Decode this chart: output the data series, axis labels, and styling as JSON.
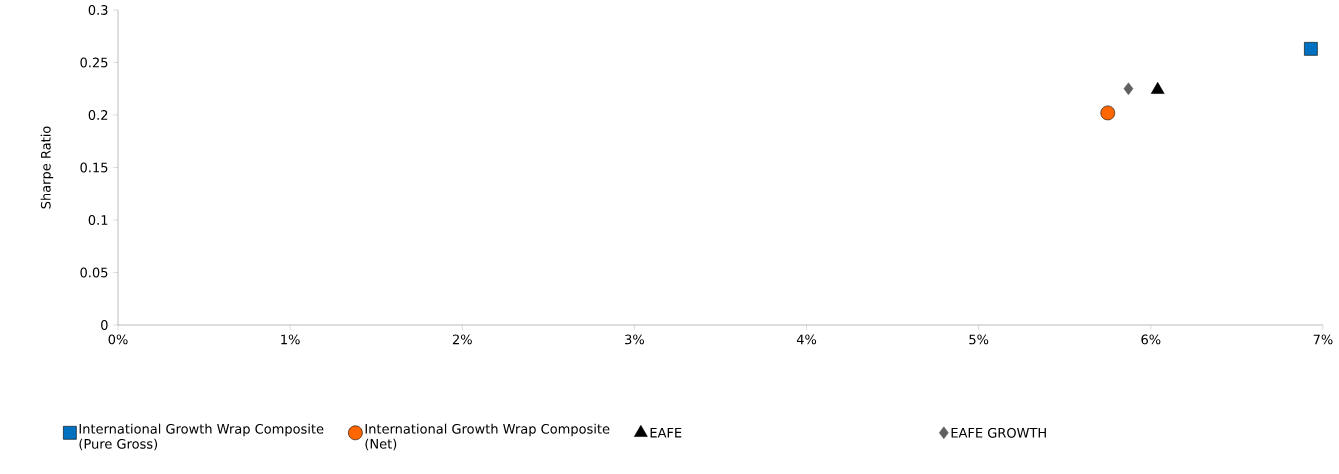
{
  "chart_data": {
    "type": "scatter",
    "ylabel": "Sharpe Ratio",
    "xlim": [
      0,
      7
    ],
    "ylim": [
      0,
      0.3
    ],
    "xticks": [
      {
        "value": 0,
        "label": "0%"
      },
      {
        "value": 1,
        "label": "1%"
      },
      {
        "value": 2,
        "label": "2%"
      },
      {
        "value": 3,
        "label": "3%"
      },
      {
        "value": 4,
        "label": "4%"
      },
      {
        "value": 5,
        "label": "5%"
      },
      {
        "value": 6,
        "label": "6%"
      },
      {
        "value": 7,
        "label": "7%"
      }
    ],
    "yticks": [
      0,
      0.05,
      0.1,
      0.15,
      0.2,
      0.25,
      0.3
    ],
    "legend": "bottom",
    "series": [
      {
        "name": "International Growth Wrap Composite (Pure Gross)",
        "color": "#0070c0",
        "marker": "square",
        "x": [
          6.93
        ],
        "values": [
          0.263
        ]
      },
      {
        "name": "International Growth Wrap Composite (Net)",
        "color": "#ff6600",
        "marker": "circle",
        "x": [
          5.75
        ],
        "values": [
          0.202
        ]
      },
      {
        "name": "EAFE",
        "color": "#000000",
        "marker": "triangle",
        "x": [
          6.04
        ],
        "values": [
          0.224
        ]
      },
      {
        "name": "EAFE GROWTH",
        "color": "#606060",
        "marker": "diamond",
        "x": [
          5.87
        ],
        "values": [
          0.225
        ]
      }
    ]
  }
}
